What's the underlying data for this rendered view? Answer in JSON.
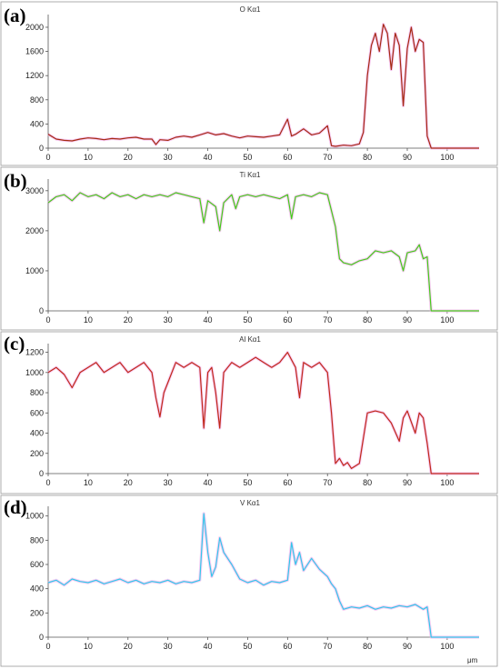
{
  "chart_data": [
    {
      "panel_label": "(a)",
      "title": "O Kα1",
      "type": "line",
      "color": "#a52a12",
      "xlim": [
        0,
        108
      ],
      "ylim": [
        0,
        2150
      ],
      "xticks": [
        0,
        10,
        20,
        30,
        40,
        50,
        60,
        70,
        80,
        90,
        100
      ],
      "yticks": [
        0,
        400,
        800,
        1200,
        1600,
        2000
      ],
      "xlabel": "",
      "x": [
        0,
        2,
        4,
        6,
        8,
        10,
        12,
        14,
        16,
        18,
        20,
        22,
        24,
        26,
        27,
        28,
        30,
        32,
        34,
        36,
        38,
        40,
        42,
        44,
        46,
        48,
        50,
        52,
        54,
        56,
        58,
        60,
        61,
        62,
        64,
        66,
        68,
        70,
        71,
        72,
        74,
        76,
        78,
        79,
        80,
        81,
        82,
        83,
        84,
        85,
        86,
        87,
        88,
        89,
        90,
        91,
        92,
        93,
        94,
        95,
        96,
        98,
        100,
        102,
        104,
        106,
        108
      ],
      "y": [
        230,
        150,
        130,
        120,
        150,
        170,
        160,
        140,
        160,
        150,
        170,
        180,
        150,
        150,
        60,
        140,
        130,
        180,
        200,
        180,
        220,
        260,
        220,
        240,
        200,
        170,
        200,
        190,
        180,
        200,
        220,
        480,
        200,
        230,
        320,
        220,
        250,
        370,
        40,
        30,
        50,
        40,
        70,
        260,
        1200,
        1700,
        1900,
        1600,
        2050,
        1900,
        1300,
        1900,
        1700,
        700,
        1650,
        2000,
        1600,
        1800,
        1750,
        200,
        0,
        0,
        0,
        0,
        0,
        0,
        0
      ]
    },
    {
      "panel_label": "(b)",
      "title": "Ti Kα1",
      "type": "line",
      "color": "#44cc1a",
      "xlim": [
        0,
        108
      ],
      "ylim": [
        0,
        3200
      ],
      "xticks": [
        0,
        10,
        20,
        30,
        40,
        50,
        60,
        70,
        80,
        90,
        100
      ],
      "yticks": [
        0,
        1000,
        2000,
        3000
      ],
      "xlabel": "",
      "x": [
        0,
        2,
        4,
        6,
        8,
        10,
        12,
        14,
        16,
        18,
        20,
        22,
        24,
        26,
        28,
        30,
        32,
        34,
        36,
        38,
        39,
        40,
        42,
        43,
        44,
        46,
        47,
        48,
        50,
        52,
        54,
        56,
        58,
        60,
        61,
        62,
        64,
        66,
        68,
        70,
        71,
        72,
        73,
        74,
        76,
        78,
        80,
        82,
        84,
        86,
        88,
        89,
        90,
        92,
        93,
        94,
        95,
        96,
        98,
        100,
        102,
        104,
        106,
        108
      ],
      "y": [
        2700,
        2850,
        2900,
        2750,
        2950,
        2850,
        2900,
        2800,
        2950,
        2850,
        2900,
        2800,
        2900,
        2850,
        2900,
        2850,
        2950,
        2900,
        2850,
        2800,
        2200,
        2750,
        2600,
        2000,
        2700,
        2900,
        2550,
        2850,
        2900,
        2850,
        2900,
        2850,
        2800,
        2900,
        2300,
        2850,
        2900,
        2850,
        2950,
        2900,
        2500,
        2100,
        1300,
        1200,
        1150,
        1250,
        1300,
        1500,
        1450,
        1500,
        1350,
        1000,
        1450,
        1500,
        1650,
        1300,
        1350,
        0,
        0,
        0,
        0,
        0,
        0,
        0
      ]
    },
    {
      "panel_label": "(c)",
      "title": "Al Kα1",
      "type": "line",
      "color": "#c02a18",
      "xlim": [
        0,
        108
      ],
      "ylim": [
        0,
        1250
      ],
      "xticks": [
        0,
        10,
        20,
        30,
        40,
        50,
        60,
        70,
        80,
        90,
        100
      ],
      "yticks": [
        0,
        200,
        400,
        600,
        800,
        1000,
        1200
      ],
      "xlabel": "",
      "x": [
        0,
        2,
        4,
        6,
        8,
        10,
        12,
        14,
        16,
        18,
        20,
        22,
        24,
        26,
        27,
        28,
        29,
        30,
        32,
        34,
        36,
        38,
        39,
        40,
        41,
        42,
        43,
        44,
        46,
        48,
        50,
        52,
        54,
        56,
        58,
        60,
        62,
        63,
        64,
        66,
        68,
        70,
        71,
        72,
        73,
        74,
        75,
        76,
        78,
        79,
        80,
        82,
        84,
        86,
        88,
        89,
        90,
        92,
        93,
        94,
        95,
        96,
        98,
        100,
        102,
        104,
        106,
        108
      ],
      "y": [
        1000,
        1050,
        980,
        850,
        1000,
        1050,
        1100,
        1000,
        1050,
        1100,
        1000,
        1050,
        1100,
        1000,
        750,
        560,
        800,
        900,
        1100,
        1050,
        1100,
        1050,
        450,
        1000,
        1050,
        800,
        450,
        1000,
        1100,
        1050,
        1100,
        1150,
        1100,
        1050,
        1100,
        1200,
        1050,
        750,
        1100,
        1050,
        1100,
        1000,
        600,
        100,
        150,
        80,
        110,
        50,
        100,
        350,
        600,
        620,
        600,
        500,
        320,
        550,
        620,
        400,
        600,
        550,
        300,
        0,
        0,
        0,
        0,
        0,
        0,
        0
      ]
    },
    {
      "panel_label": "(d)",
      "title": "V Kα1",
      "type": "line",
      "color": "#33c8ea",
      "xlim": [
        0,
        108
      ],
      "ylim": [
        0,
        1050
      ],
      "xticks": [
        0,
        10,
        20,
        30,
        40,
        50,
        60,
        70,
        80,
        90,
        100
      ],
      "yticks": [
        0,
        200,
        400,
        600,
        800,
        1000
      ],
      "xlabel": "μm",
      "x": [
        0,
        2,
        4,
        6,
        8,
        10,
        12,
        14,
        16,
        18,
        20,
        22,
        24,
        26,
        28,
        30,
        32,
        34,
        36,
        38,
        39,
        40,
        41,
        42,
        43,
        44,
        46,
        48,
        50,
        52,
        54,
        56,
        58,
        60,
        61,
        62,
        63,
        64,
        66,
        68,
        70,
        71,
        72,
        73,
        74,
        76,
        78,
        80,
        82,
        84,
        86,
        88,
        90,
        92,
        94,
        95,
        96,
        98,
        100,
        102,
        104,
        106,
        108
      ],
      "y": [
        450,
        470,
        430,
        480,
        460,
        450,
        470,
        440,
        460,
        480,
        450,
        470,
        440,
        460,
        450,
        470,
        440,
        460,
        450,
        470,
        1020,
        700,
        500,
        580,
        820,
        700,
        600,
        480,
        450,
        470,
        430,
        460,
        450,
        470,
        780,
        600,
        700,
        550,
        650,
        560,
        500,
        440,
        400,
        300,
        230,
        250,
        240,
        260,
        230,
        250,
        240,
        260,
        250,
        270,
        230,
        250,
        0,
        0,
        0,
        0,
        0,
        0,
        0
      ]
    }
  ]
}
